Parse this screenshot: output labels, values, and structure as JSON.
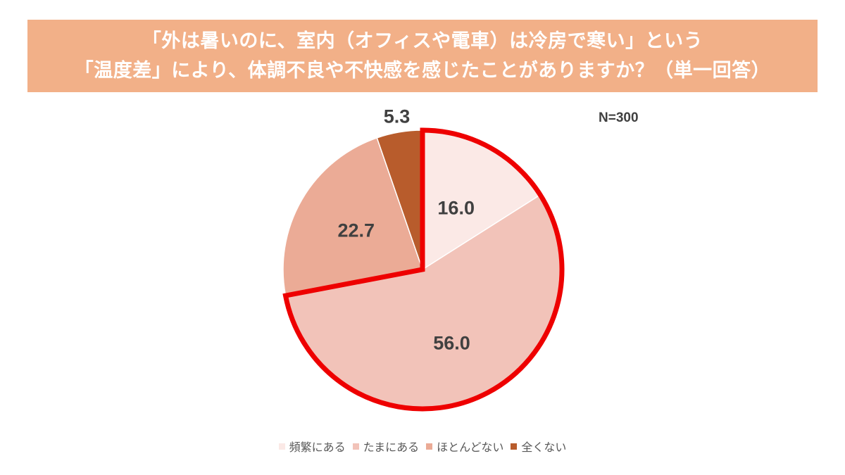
{
  "title": {
    "line1": "「外は暑いのに、室内（オフィスや電車）は冷房で寒い」という",
    "line2": "「温度差」により、体調不良や不快感を感じたことがありますか？（単一回答）"
  },
  "sample_size": "N=300",
  "highlight": {
    "color": "#ee0000",
    "covers": [
      "頻繁にある",
      "たまにある"
    ]
  },
  "chart_data": {
    "type": "pie",
    "title": "「外は暑いのに、室内（オフィスや電車）は冷房で寒い」という「温度差」により、体調不良や不快感を感じたことがありますか？（単一回答）",
    "unit": "%",
    "n": 300,
    "start_angle": "12 o'clock",
    "direction": "clockwise",
    "categories": [
      "頻繁にある",
      "たまにある",
      "ほとんどない",
      "全くない"
    ],
    "values": [
      16.0,
      56.0,
      22.7,
      5.3
    ],
    "labels": [
      "16.0",
      "56.0",
      "22.7",
      "5.3"
    ],
    "colors": [
      "#fbe9e6",
      "#f2c3b9",
      "#ebab96",
      "#b85c2c"
    ],
    "legend_position": "bottom"
  }
}
